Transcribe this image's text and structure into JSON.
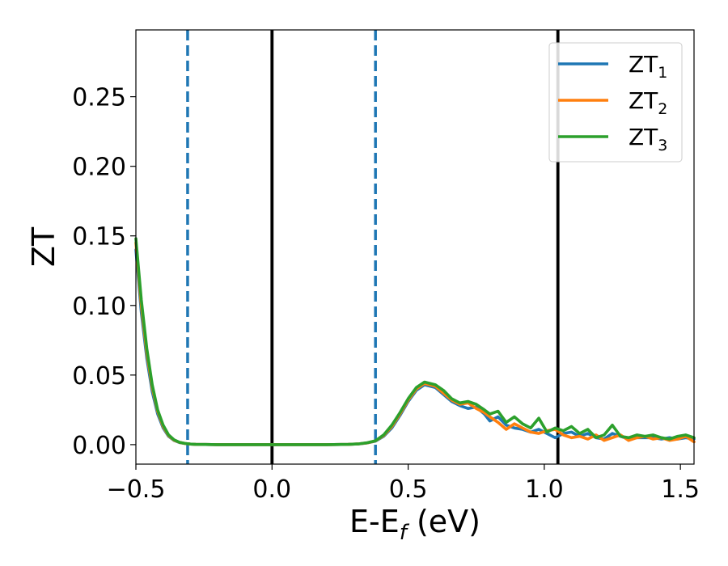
{
  "chart_data": {
    "type": "line",
    "xlabel": {
      "main": "E-E",
      "sub": "f",
      "unit": " (eV)"
    },
    "ylabel": "ZT",
    "xlim": [
      -0.5,
      1.55
    ],
    "ylim": [
      -0.014,
      0.298
    ],
    "xticks": [
      -0.5,
      0.0,
      0.5,
      1.0,
      1.5
    ],
    "xtick_labels": [
      "−0.5",
      "0.0",
      "0.5",
      "1.0",
      "1.5"
    ],
    "yticks": [
      0.0,
      0.05,
      0.1,
      0.15,
      0.2,
      0.25
    ],
    "ytick_labels": [
      "0.00",
      "0.05",
      "0.10",
      "0.15",
      "0.20",
      "0.25"
    ],
    "grid": false,
    "legend_position": "top-right",
    "vlines": [
      {
        "x": -0.31,
        "style": "dashed",
        "color": "#1f77b4"
      },
      {
        "x": 0.0,
        "style": "solid",
        "color": "#000000"
      },
      {
        "x": 0.38,
        "style": "dashed",
        "color": "#1f77b4"
      },
      {
        "x": 1.05,
        "style": "solid",
        "color": "#000000"
      }
    ],
    "series": [
      {
        "name": {
          "main": "ZT",
          "sub": "1"
        },
        "color": "#1f77b4",
        "x": [
          -0.5,
          -0.48,
          -0.46,
          -0.44,
          -0.42,
          -0.4,
          -0.38,
          -0.36,
          -0.34,
          -0.32,
          -0.3,
          -0.28,
          -0.25,
          -0.2,
          -0.1,
          0.0,
          0.1,
          0.2,
          0.28,
          0.32,
          0.35,
          0.38,
          0.41,
          0.44,
          0.47,
          0.5,
          0.53,
          0.56,
          0.6,
          0.63,
          0.66,
          0.69,
          0.72,
          0.75,
          0.78,
          0.8,
          0.83,
          0.86,
          0.89,
          0.92,
          0.95,
          0.98,
          1.01,
          1.04,
          1.07,
          1.1,
          1.13,
          1.16,
          1.19,
          1.22,
          1.25,
          1.28,
          1.31,
          1.34,
          1.37,
          1.4,
          1.43,
          1.46,
          1.49,
          1.52,
          1.55
        ],
        "y": [
          0.14,
          0.095,
          0.062,
          0.038,
          0.022,
          0.012,
          0.006,
          0.003,
          0.0015,
          0.0008,
          0.0004,
          0.0002,
          0.0001,
          0.0,
          0.0,
          0.0,
          0.0,
          0.0,
          0.0002,
          0.0005,
          0.0012,
          0.0025,
          0.006,
          0.012,
          0.021,
          0.031,
          0.039,
          0.043,
          0.041,
          0.036,
          0.031,
          0.028,
          0.026,
          0.027,
          0.022,
          0.017,
          0.02,
          0.014,
          0.012,
          0.011,
          0.009,
          0.011,
          0.008,
          0.005,
          0.008,
          0.009,
          0.006,
          0.008,
          0.005,
          0.004,
          0.008,
          0.006,
          0.004,
          0.005,
          0.005,
          0.005,
          0.004,
          0.005,
          0.004,
          0.005,
          0.004
        ]
      },
      {
        "name": {
          "main": "ZT",
          "sub": "2"
        },
        "color": "#ff7f0e",
        "x": [
          -0.5,
          -0.48,
          -0.46,
          -0.44,
          -0.42,
          -0.4,
          -0.38,
          -0.36,
          -0.34,
          -0.32,
          -0.3,
          -0.28,
          -0.25,
          -0.2,
          -0.1,
          0.0,
          0.1,
          0.2,
          0.28,
          0.32,
          0.35,
          0.38,
          0.41,
          0.44,
          0.47,
          0.5,
          0.53,
          0.56,
          0.6,
          0.63,
          0.66,
          0.69,
          0.72,
          0.75,
          0.78,
          0.8,
          0.83,
          0.86,
          0.89,
          0.92,
          0.95,
          0.98,
          1.01,
          1.04,
          1.07,
          1.1,
          1.13,
          1.16,
          1.19,
          1.22,
          1.25,
          1.28,
          1.31,
          1.34,
          1.37,
          1.4,
          1.43,
          1.46,
          1.49,
          1.52,
          1.55
        ],
        "y": [
          0.145,
          0.1,
          0.066,
          0.041,
          0.024,
          0.013,
          0.0065,
          0.0032,
          0.0016,
          0.0008,
          0.0004,
          0.0002,
          0.0001,
          0.0,
          0.0,
          0.0,
          0.0,
          0.0,
          0.0002,
          0.0006,
          0.0013,
          0.0027,
          0.0065,
          0.013,
          0.022,
          0.032,
          0.04,
          0.044,
          0.042,
          0.037,
          0.032,
          0.029,
          0.03,
          0.026,
          0.023,
          0.02,
          0.016,
          0.011,
          0.015,
          0.012,
          0.009,
          0.008,
          0.01,
          0.011,
          0.007,
          0.005,
          0.006,
          0.004,
          0.007,
          0.003,
          0.005,
          0.007,
          0.003,
          0.005,
          0.006,
          0.004,
          0.005,
          0.003,
          0.004,
          0.006,
          0.002
        ]
      },
      {
        "name": {
          "main": "ZT",
          "sub": "3"
        },
        "color": "#2ca02c",
        "x": [
          -0.5,
          -0.48,
          -0.46,
          -0.44,
          -0.42,
          -0.4,
          -0.38,
          -0.36,
          -0.34,
          -0.32,
          -0.3,
          -0.28,
          -0.25,
          -0.2,
          -0.1,
          0.0,
          0.1,
          0.2,
          0.28,
          0.32,
          0.35,
          0.38,
          0.41,
          0.44,
          0.47,
          0.5,
          0.53,
          0.56,
          0.6,
          0.63,
          0.66,
          0.69,
          0.72,
          0.75,
          0.78,
          0.8,
          0.83,
          0.86,
          0.89,
          0.92,
          0.95,
          0.98,
          1.01,
          1.04,
          1.07,
          1.1,
          1.13,
          1.16,
          1.19,
          1.22,
          1.25,
          1.28,
          1.31,
          1.34,
          1.37,
          1.4,
          1.43,
          1.46,
          1.49,
          1.52,
          1.55
        ],
        "y": [
          0.148,
          0.104,
          0.069,
          0.043,
          0.025,
          0.014,
          0.007,
          0.0035,
          0.0017,
          0.0009,
          0.0004,
          0.0002,
          0.0001,
          0.0,
          0.0,
          0.0,
          0.0,
          0.0,
          0.0002,
          0.0006,
          0.0014,
          0.0028,
          0.007,
          0.014,
          0.023,
          0.033,
          0.041,
          0.045,
          0.043,
          0.039,
          0.033,
          0.03,
          0.031,
          0.029,
          0.025,
          0.022,
          0.024,
          0.016,
          0.02,
          0.015,
          0.012,
          0.019,
          0.009,
          0.012,
          0.01,
          0.013,
          0.008,
          0.011,
          0.005,
          0.007,
          0.014,
          0.006,
          0.005,
          0.007,
          0.006,
          0.007,
          0.005,
          0.004,
          0.006,
          0.007,
          0.005
        ]
      }
    ]
  }
}
